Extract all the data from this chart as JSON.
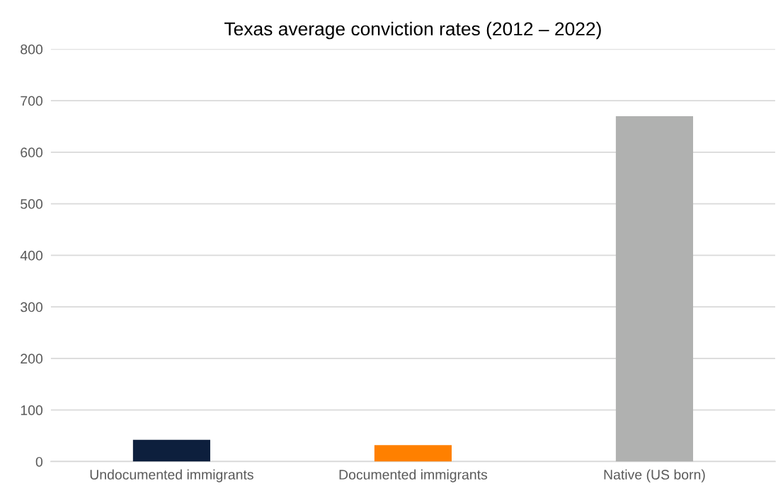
{
  "chart_data": {
    "type": "bar",
    "title": "Texas average conviction rates (2012 – 2022)",
    "categories": [
      "Undocumented immigrants",
      "Documented immigrants",
      "Native (US born)"
    ],
    "values": [
      42,
      32,
      670
    ],
    "colors": [
      "#0d1f3d",
      "#ff8000",
      "#b0b1b0"
    ],
    "ylim": [
      0,
      800
    ],
    "yticks": [
      0,
      100,
      200,
      300,
      400,
      500,
      600,
      700,
      800
    ],
    "grid": "y"
  }
}
